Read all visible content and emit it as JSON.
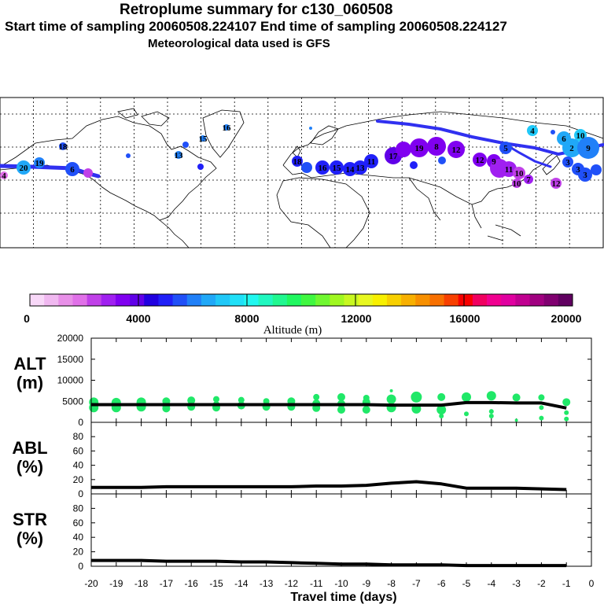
{
  "titles": {
    "line1": "Retroplume summary for c130_060508",
    "line2": "Start time of sampling 20060508.224107     End time of sampling 20060508.224127",
    "line3": "Meteorological data used is GFS"
  },
  "colorbar": {
    "ticks": [
      "0",
      "4000",
      "8000",
      "12000",
      "16000",
      "20000"
    ],
    "label": "Altitude (m)",
    "colors": [
      "#f8d8f8",
      "#f0b8f0",
      "#e890e8",
      "#e070e8",
      "#c040e8",
      "#a020f0",
      "#8000f0",
      "#6000e8",
      "#2000e0",
      "#2020f8",
      "#2050f8",
      "#2080f8",
      "#20a8f8",
      "#20c8f8",
      "#20e0f8",
      "#20f8f0",
      "#20f8c0",
      "#20f890",
      "#20f860",
      "#40f840",
      "#70f830",
      "#a0f820",
      "#c8f820",
      "#e8f820",
      "#f8f000",
      "#f8d000",
      "#f8b000",
      "#f89000",
      "#f87000",
      "#f84000",
      "#f80000",
      "#f00060",
      "#f00090",
      "#e000a0",
      "#c00090",
      "#a00080",
      "#800070",
      "#600060"
    ]
  },
  "map": {
    "circles": [
      {
        "x": 5,
        "y": 223,
        "r": 5,
        "c": "#e070e8",
        "label": "4"
      },
      {
        "x": 30,
        "y": 213,
        "r": 9,
        "c": "#20a8f8",
        "label": "20"
      },
      {
        "x": 50,
        "y": 207,
        "r": 7,
        "c": "#2080f8",
        "label": "19"
      },
      {
        "x": 80,
        "y": 186,
        "r": 5,
        "c": "#2050f8",
        "label": "18"
      },
      {
        "x": 92,
        "y": 215,
        "r": 9,
        "c": "#2050f8",
        "label": "6"
      },
      {
        "x": 112,
        "y": 220,
        "r": 6,
        "c": "#c040e8",
        "label": ""
      },
      {
        "x": 163,
        "y": 198,
        "r": 3,
        "c": "#2050f8",
        "label": ""
      },
      {
        "x": 236,
        "y": 184,
        "r": 4,
        "c": "#2050f8",
        "label": ""
      },
      {
        "x": 227,
        "y": 197,
        "r": 5,
        "c": "#2080f8",
        "label": "13"
      },
      {
        "x": 258,
        "y": 176,
        "r": 4,
        "c": "#2080f8",
        "label": "15"
      },
      {
        "x": 288,
        "y": 162,
        "r": 4,
        "c": "#2080f8",
        "label": "16"
      },
      {
        "x": 255,
        "y": 212,
        "r": 4,
        "c": "#2020f8",
        "label": ""
      },
      {
        "x": 378,
        "y": 205,
        "r": 7,
        "c": "#2020f8",
        "label": "18"
      },
      {
        "x": 390,
        "y": 213,
        "r": 7,
        "c": "#2050f8",
        "label": ""
      },
      {
        "x": 410,
        "y": 213,
        "r": 9,
        "c": "#2020f8",
        "label": "16"
      },
      {
        "x": 428,
        "y": 213,
        "r": 9,
        "c": "#2020f8",
        "label": "15"
      },
      {
        "x": 445,
        "y": 215,
        "r": 9,
        "c": "#2020f8",
        "label": "14"
      },
      {
        "x": 458,
        "y": 213,
        "r": 9,
        "c": "#2020f8",
        "label": "13"
      },
      {
        "x": 472,
        "y": 205,
        "r": 9,
        "c": "#2020f8",
        "label": "11"
      },
      {
        "x": 500,
        "y": 198,
        "r": 11,
        "c": "#6000e8",
        "label": "17"
      },
      {
        "x": 513,
        "y": 190,
        "r": 10,
        "c": "#8000f0",
        "label": ""
      },
      {
        "x": 533,
        "y": 188,
        "r": 12,
        "c": "#8000f0",
        "label": "19"
      },
      {
        "x": 555,
        "y": 186,
        "r": 12,
        "c": "#8000f0",
        "label": "8"
      },
      {
        "x": 580,
        "y": 190,
        "r": 11,
        "c": "#8000f0",
        "label": "12"
      },
      {
        "x": 526,
        "y": 210,
        "r": 5,
        "c": "#2020f8",
        "label": ""
      },
      {
        "x": 562,
        "y": 204,
        "r": 5,
        "c": "#2050f8",
        "label": ""
      },
      {
        "x": 610,
        "y": 203,
        "r": 9,
        "c": "#8000f0",
        "label": "12"
      },
      {
        "x": 628,
        "y": 205,
        "r": 9,
        "c": "#8000f0",
        "label": "9"
      },
      {
        "x": 635,
        "y": 214,
        "r": 12,
        "c": "#a020f0",
        "label": ""
      },
      {
        "x": 647,
        "y": 215,
        "r": 10,
        "c": "#a020f0",
        "label": "11"
      },
      {
        "x": 660,
        "y": 220,
        "r": 8,
        "c": "#c040e8",
        "label": "10"
      },
      {
        "x": 657,
        "y": 233,
        "r": 6,
        "c": "#c040e8",
        "label": "10"
      },
      {
        "x": 672,
        "y": 228,
        "r": 6,
        "c": "#a020f0",
        "label": "7"
      },
      {
        "x": 707,
        "y": 233,
        "r": 7,
        "c": "#c040e8",
        "label": "12"
      },
      {
        "x": 643,
        "y": 188,
        "r": 8,
        "c": "#2050f8",
        "label": "5"
      },
      {
        "x": 677,
        "y": 166,
        "r": 7,
        "c": "#20c8f8",
        "label": "4"
      },
      {
        "x": 717,
        "y": 176,
        "r": 9,
        "c": "#20a8f8",
        "label": "6"
      },
      {
        "x": 738,
        "y": 172,
        "r": 8,
        "c": "#20c8f8",
        "label": "10"
      },
      {
        "x": 727,
        "y": 188,
        "r": 12,
        "c": "#20a8f8",
        "label": "2"
      },
      {
        "x": 748,
        "y": 188,
        "r": 14,
        "c": "#2080f8",
        "label": "9"
      },
      {
        "x": 722,
        "y": 206,
        "r": 7,
        "c": "#2050f8",
        "label": "3"
      },
      {
        "x": 735,
        "y": 215,
        "r": 8,
        "c": "#2050f8",
        "label": "3"
      },
      {
        "x": 744,
        "y": 222,
        "r": 9,
        "c": "#2050f8",
        "label": "3"
      },
      {
        "x": 758,
        "y": 216,
        "r": 7,
        "c": "#2050f8",
        "label": ""
      },
      {
        "x": 703,
        "y": 168,
        "r": 3,
        "c": "#2050f8",
        "label": ""
      },
      {
        "x": 395,
        "y": 163,
        "r": 2,
        "c": "#2080f8",
        "label": ""
      }
    ]
  },
  "panels": [
    {
      "label": "ALT",
      "unit": "(m)",
      "ticks": [
        "20000",
        "15000",
        "10000",
        "5000",
        "0"
      ]
    },
    {
      "label": "ABL",
      "unit": "(%)",
      "ticks": [
        "80",
        "60",
        "40",
        "20",
        "0"
      ]
    },
    {
      "label": "STR",
      "unit": "(%)",
      "ticks": [
        "80",
        "60",
        "40",
        "20",
        "0"
      ]
    }
  ],
  "chart_data": {
    "type": "line",
    "title": "Retroplume summary for c130_060508",
    "xlabel": "Travel time (days)",
    "x_ticks": [
      "-20",
      "-19",
      "-18",
      "-17",
      "-16",
      "-15",
      "-14",
      "-13",
      "-12",
      "-11",
      "-10",
      "-9",
      "-8",
      "-7",
      "-6",
      "-5",
      "-4",
      "-3",
      "-2",
      "-1",
      "0"
    ],
    "xlim": [
      -20,
      0
    ],
    "series": [
      {
        "name": "ALT (m)",
        "ylim": [
          0,
          20000
        ],
        "x": [
          -20,
          -19,
          -18,
          -17,
          -16,
          -15,
          -14,
          -13,
          -12,
          -11,
          -10,
          -9,
          -8,
          -7,
          -6,
          -5,
          -4,
          -3,
          -2,
          -1
        ],
        "y": [
          4200,
          4200,
          4200,
          4200,
          4200,
          4200,
          4200,
          4200,
          4200,
          4200,
          4200,
          4200,
          4100,
          4100,
          4100,
          4700,
          4700,
          4600,
          4600,
          3400
        ]
      },
      {
        "name": "ABL (%)",
        "ylim": [
          0,
          100
        ],
        "x": [
          -20,
          -19,
          -18,
          -17,
          -16,
          -15,
          -14,
          -13,
          -12,
          -11,
          -10,
          -9,
          -8,
          -7,
          -6,
          -5,
          -4,
          -3,
          -2,
          -1
        ],
        "y": [
          9,
          9,
          9,
          10,
          10,
          10,
          10,
          10,
          10,
          11,
          11,
          12,
          15,
          17,
          14,
          8,
          8,
          8,
          7,
          6
        ]
      },
      {
        "name": "STR (%)",
        "ylim": [
          0,
          100
        ],
        "x": [
          -20,
          -19,
          -18,
          -17,
          -16,
          -15,
          -14,
          -13,
          -12,
          -11,
          -10,
          -9,
          -8,
          -7,
          -6,
          -5,
          -4,
          -3,
          -2,
          -1
        ],
        "y": [
          8,
          8,
          8,
          7,
          7,
          7,
          6,
          6,
          5,
          4,
          3,
          3,
          2,
          2,
          2,
          1,
          1,
          1,
          1,
          1
        ]
      }
    ],
    "alt_scatter": {
      "color": "#20e868",
      "points": [
        {
          "x": -19.9,
          "y": 4800,
          "s": 6
        },
        {
          "x": -19.9,
          "y": 3500,
          "s": 6
        },
        {
          "x": -19,
          "y": 4700,
          "s": 6
        },
        {
          "x": -19,
          "y": 3500,
          "s": 6
        },
        {
          "x": -18,
          "y": 4800,
          "s": 6
        },
        {
          "x": -18,
          "y": 3700,
          "s": 6
        },
        {
          "x": -17,
          "y": 5000,
          "s": 5
        },
        {
          "x": -17,
          "y": 4000,
          "s": 5
        },
        {
          "x": -17,
          "y": 3300,
          "s": 5
        },
        {
          "x": -16,
          "y": 5200,
          "s": 5
        },
        {
          "x": -16,
          "y": 3700,
          "s": 5
        },
        {
          "x": -15,
          "y": 5500,
          "s": 4
        },
        {
          "x": -15,
          "y": 4300,
          "s": 4
        },
        {
          "x": -15,
          "y": 3500,
          "s": 5
        },
        {
          "x": -14,
          "y": 5300,
          "s": 4
        },
        {
          "x": -14,
          "y": 4000,
          "s": 5
        },
        {
          "x": -13,
          "y": 5000,
          "s": 4
        },
        {
          "x": -13,
          "y": 3700,
          "s": 5
        },
        {
          "x": -12,
          "y": 5000,
          "s": 5
        },
        {
          "x": -12,
          "y": 3700,
          "s": 5
        },
        {
          "x": -11,
          "y": 6000,
          "s": 4
        },
        {
          "x": -11,
          "y": 4500,
          "s": 5
        },
        {
          "x": -11,
          "y": 3400,
          "s": 5
        },
        {
          "x": -10,
          "y": 6000,
          "s": 5
        },
        {
          "x": -10,
          "y": 4400,
          "s": 5
        },
        {
          "x": -10,
          "y": 3000,
          "s": 5
        },
        {
          "x": -9,
          "y": 5800,
          "s": 4
        },
        {
          "x": -9,
          "y": 4800,
          "s": 5
        },
        {
          "x": -9,
          "y": 3000,
          "s": 5
        },
        {
          "x": -8,
          "y": 7500,
          "s": 2
        },
        {
          "x": -8,
          "y": 5500,
          "s": 6
        },
        {
          "x": -8,
          "y": 3500,
          "s": 6
        },
        {
          "x": -7,
          "y": 6000,
          "s": 7
        },
        {
          "x": -7,
          "y": 3200,
          "s": 6
        },
        {
          "x": -6,
          "y": 6000,
          "s": 5
        },
        {
          "x": -6,
          "y": 3000,
          "s": 6
        },
        {
          "x": -6,
          "y": 1500,
          "s": 3
        },
        {
          "x": -5,
          "y": 6000,
          "s": 6
        },
        {
          "x": -5,
          "y": 2000,
          "s": 3
        },
        {
          "x": -4,
          "y": 6300,
          "s": 6
        },
        {
          "x": -4,
          "y": 2600,
          "s": 3
        },
        {
          "x": -4,
          "y": 1500,
          "s": 3
        },
        {
          "x": -3,
          "y": 5900,
          "s": 5
        },
        {
          "x": -3,
          "y": 500,
          "s": 2
        },
        {
          "x": -2,
          "y": 5900,
          "s": 4
        },
        {
          "x": -2,
          "y": 3500,
          "s": 3
        },
        {
          "x": -2,
          "y": 1000,
          "s": 3
        },
        {
          "x": -1,
          "y": 4800,
          "s": 5
        },
        {
          "x": -1,
          "y": 2300,
          "s": 3
        },
        {
          "x": -1,
          "y": 800,
          "s": 3
        }
      ]
    }
  }
}
